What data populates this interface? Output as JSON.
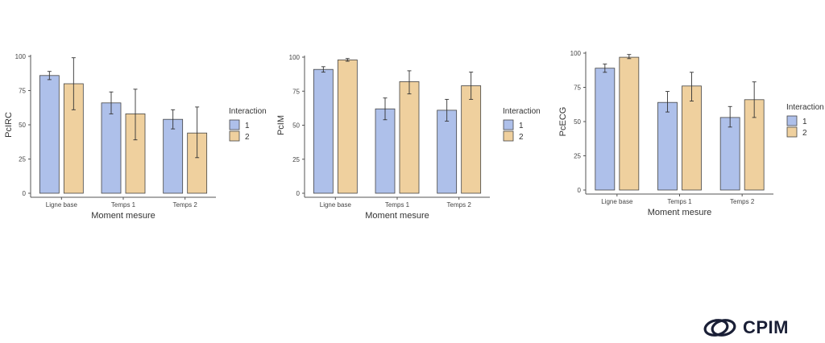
{
  "colors": {
    "series1": "#aec0ea",
    "series2": "#efd09e",
    "border": "#444444",
    "axis": "#555555"
  },
  "brand": {
    "name": "CPIM",
    "icon": "cpim-logo-icon"
  },
  "chart_data": [
    {
      "type": "bar",
      "ylabel": "PcIRC",
      "xlabel": "Moment mesure",
      "categories": [
        "Ligne base",
        "Temps 1",
        "Temps 2"
      ],
      "ylim": [
        0,
        100
      ],
      "yticks": [
        "0",
        "25",
        "50",
        "75",
        "100"
      ],
      "legend": {
        "title": "Interaction",
        "position": "right"
      },
      "grid": false,
      "series": [
        {
          "name": "1",
          "values": [
            86,
            66,
            54
          ],
          "err_low": [
            83,
            58,
            47
          ],
          "err_high": [
            89,
            74,
            61
          ]
        },
        {
          "name": "2",
          "values": [
            80,
            58,
            44
          ],
          "err_low": [
            61,
            39,
            26
          ],
          "err_high": [
            99,
            76,
            63
          ]
        }
      ]
    },
    {
      "type": "bar",
      "ylabel": "PcIM",
      "xlabel": "Moment mesure",
      "categories": [
        "Ligne base",
        "Temps 1",
        "Temps 2"
      ],
      "ylim": [
        0,
        100
      ],
      "yticks": [
        "0",
        "25",
        "50",
        "75",
        "100"
      ],
      "legend": {
        "title": "Interaction",
        "position": "right"
      },
      "grid": false,
      "series": [
        {
          "name": "1",
          "values": [
            91,
            62,
            61
          ],
          "err_low": [
            89,
            54,
            53
          ],
          "err_high": [
            93,
            70,
            69
          ]
        },
        {
          "name": "2",
          "values": [
            98,
            82,
            79
          ],
          "err_low": [
            97,
            73,
            69
          ],
          "err_high": [
            99,
            90,
            89
          ]
        }
      ]
    },
    {
      "type": "bar",
      "ylabel": "PcECG",
      "xlabel": "Moment mesure",
      "categories": [
        "Ligne base",
        "Temps 1",
        "Temps 2"
      ],
      "ylim": [
        0,
        100
      ],
      "yticks": [
        "0",
        "25",
        "50",
        "75",
        "100"
      ],
      "legend": {
        "title": "Interaction",
        "position": "right"
      },
      "grid": false,
      "series": [
        {
          "name": "1",
          "values": [
            89,
            64,
            53
          ],
          "err_low": [
            86,
            57,
            46
          ],
          "err_high": [
            92,
            72,
            61
          ]
        },
        {
          "name": "2",
          "values": [
            97,
            76,
            66
          ],
          "err_low": [
            96,
            65,
            53
          ],
          "err_high": [
            99,
            86,
            79
          ]
        }
      ]
    }
  ]
}
